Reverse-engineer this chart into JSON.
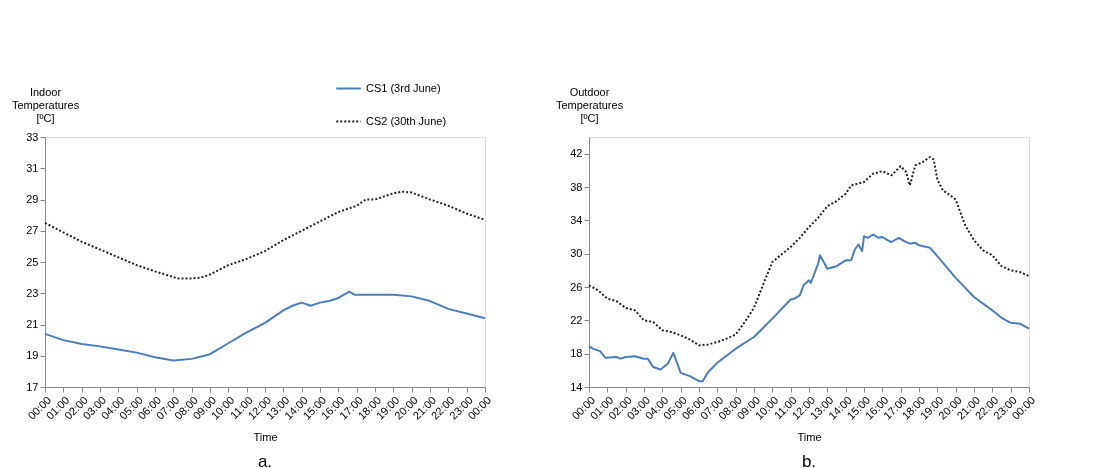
{
  "chart_data": [
    {
      "type": "line",
      "ylabel": "Indoor Temperatures [ºC]",
      "xlabel": "Time",
      "annotations": [
        "a."
      ],
      "xlim": [
        0,
        24
      ],
      "xticks": [
        {
          "value": 0,
          "label": "00:00"
        },
        {
          "value": 1,
          "label": "01:00"
        },
        {
          "value": 2,
          "label": "02:00"
        },
        {
          "value": 3,
          "label": "03:00"
        },
        {
          "value": 4,
          "label": "04:00"
        },
        {
          "value": 5,
          "label": "05:00"
        },
        {
          "value": 6,
          "label": "06:00"
        },
        {
          "value": 7,
          "label": "07:00"
        },
        {
          "value": 8,
          "label": "08:00"
        },
        {
          "value": 9,
          "label": "09:00"
        },
        {
          "value": 10,
          "label": "10:00"
        },
        {
          "value": 11,
          "label": "11:00"
        },
        {
          "value": 12,
          "label": "12:00"
        },
        {
          "value": 13,
          "label": "13:00"
        },
        {
          "value": 14,
          "label": "14:00"
        },
        {
          "value": 15,
          "label": "15:00"
        },
        {
          "value": 16,
          "label": "16:00"
        },
        {
          "value": 17,
          "label": "17:00"
        },
        {
          "value": 18,
          "label": "18:00"
        },
        {
          "value": 19,
          "label": "19:00"
        },
        {
          "value": 20,
          "label": "20:00"
        },
        {
          "value": 21,
          "label": "21:00"
        },
        {
          "value": 22,
          "label": "22:00"
        },
        {
          "value": 23,
          "label": "23:00"
        },
        {
          "value": 24,
          "label": "00:00"
        }
      ],
      "ylim": [
        17,
        33
      ],
      "yticks": [
        17,
        19,
        21,
        23,
        25,
        27,
        29,
        31,
        33
      ],
      "grid": false,
      "legend": "top right",
      "marker": "none",
      "series": [
        {
          "name": "CS1 (3rd June)",
          "color": "#4a7ebb",
          "line_style": "solid",
          "x": [
            0,
            1,
            2,
            3,
            4,
            5,
            6,
            7,
            8,
            9,
            10,
            11,
            12,
            12.5,
            13,
            13.5,
            14,
            14.5,
            15,
            15.5,
            16,
            16.6,
            16.9,
            18,
            19,
            20,
            21,
            22,
            23,
            24
          ],
          "values": [
            20.4,
            20.0,
            19.75,
            19.6,
            19.4,
            19.2,
            18.9,
            18.7,
            18.8,
            19.1,
            19.8,
            20.5,
            21.1,
            21.5,
            21.9,
            22.2,
            22.4,
            22.2,
            22.4,
            22.5,
            22.7,
            23.1,
            22.9,
            22.9,
            22.9,
            22.8,
            22.5,
            22.0,
            21.7,
            21.4
          ]
        },
        {
          "name": "CS2 (30th June)",
          "color": "#222222",
          "line_style": "dotted",
          "x": [
            0,
            1,
            2,
            3,
            4,
            5,
            6,
            7,
            7.2,
            8,
            8.5,
            9,
            10,
            11,
            12,
            13,
            14,
            15,
            16,
            17,
            17.5,
            18,
            19,
            19.5,
            20,
            21,
            22,
            23,
            24
          ],
          "values": [
            27.5,
            26.9,
            26.3,
            25.8,
            25.3,
            24.8,
            24.4,
            24.05,
            23.95,
            23.95,
            24.0,
            24.2,
            24.8,
            25.2,
            25.7,
            26.4,
            27.0,
            27.6,
            28.2,
            28.6,
            29.0,
            29.0,
            29.4,
            29.5,
            29.45,
            29.0,
            28.6,
            28.1,
            27.7
          ]
        }
      ]
    },
    {
      "type": "line",
      "ylabel": "Outdoor Temperatures [ºC]",
      "xlabel": "Time",
      "annotations": [
        "b."
      ],
      "xlim": [
        0,
        24
      ],
      "xticks": [
        {
          "value": 0,
          "label": "00:00"
        },
        {
          "value": 1,
          "label": "01:00"
        },
        {
          "value": 2,
          "label": "02:00"
        },
        {
          "value": 3,
          "label": "03:00"
        },
        {
          "value": 4,
          "label": "04:00"
        },
        {
          "value": 5,
          "label": "05:00"
        },
        {
          "value": 6,
          "label": "06:00"
        },
        {
          "value": 7,
          "label": "07:00"
        },
        {
          "value": 8,
          "label": "08:00"
        },
        {
          "value": 9,
          "label": "09:00"
        },
        {
          "value": 10,
          "label": "10:00"
        },
        {
          "value": 11,
          "label": "11:00"
        },
        {
          "value": 12,
          "label": "12:00"
        },
        {
          "value": 13,
          "label": "13:00"
        },
        {
          "value": 14,
          "label": "14:00"
        },
        {
          "value": 15,
          "label": "15:00"
        },
        {
          "value": 16,
          "label": "16:00"
        },
        {
          "value": 17,
          "label": "17:00"
        },
        {
          "value": 18,
          "label": "18:00"
        },
        {
          "value": 19,
          "label": "19:00"
        },
        {
          "value": 20,
          "label": "20:00"
        },
        {
          "value": 21,
          "label": "21:00"
        },
        {
          "value": 22,
          "label": "22:00"
        },
        {
          "value": 23,
          "label": "23:00"
        },
        {
          "value": 24,
          "label": "00:00"
        }
      ],
      "ylim": [
        14,
        44
      ],
      "yticks": [
        14,
        18,
        22,
        26,
        30,
        34,
        38,
        42
      ],
      "grid": false,
      "legend": "top right",
      "marker": "none",
      "series": [
        {
          "name": "CS1 (3rd June)",
          "color": "#4a7ebb",
          "line_style": "solid",
          "x": [
            0,
            0.2,
            0.6,
            0.9,
            1.5,
            1.7,
            2,
            2.5,
            3,
            3.2,
            3.5,
            3.9,
            4.3,
            4.6,
            5,
            5.5,
            6,
            6.2,
            6.5,
            7,
            8,
            9,
            10,
            11,
            11.2,
            11.5,
            11.7,
            12,
            12.1,
            12.5,
            12.6,
            13,
            13.5,
            14,
            14.3,
            14.5,
            14.7,
            14.9,
            15,
            15.2,
            15.5,
            15.8,
            16,
            16.3,
            16.5,
            16.9,
            17.2,
            17.5,
            17.8,
            18,
            18.6,
            19,
            20,
            21,
            22,
            22.5,
            23,
            23.5,
            24
          ],
          "values": [
            18.9,
            18.6,
            18.3,
            17.5,
            17.6,
            17.4,
            17.6,
            17.7,
            17.4,
            17.4,
            16.4,
            16.1,
            16.8,
            18.1,
            15.7,
            15.3,
            14.7,
            14.7,
            15.8,
            16.9,
            18.6,
            20.0,
            22.2,
            24.5,
            24.6,
            25.0,
            26.2,
            26.8,
            26.5,
            28.8,
            29.8,
            28.2,
            28.5,
            29.2,
            29.2,
            30.5,
            31.1,
            30.3,
            32.1,
            31.9,
            32.3,
            31.9,
            32.0,
            31.6,
            31.4,
            31.9,
            31.5,
            31.2,
            31.3,
            31.0,
            30.7,
            29.7,
            27.1,
            24.8,
            23.2,
            22.3,
            21.7,
            21.6,
            21.0
          ]
        },
        {
          "name": "CS2 (30th June)",
          "color": "#222222",
          "line_style": "dotted",
          "x": [
            0,
            0.5,
            1,
            1.5,
            2,
            2.5,
            3,
            3.5,
            4,
            4.5,
            5,
            5.5,
            6,
            6.5,
            7,
            7.5,
            8,
            8.5,
            9,
            9.5,
            10,
            10.5,
            11,
            11.5,
            12,
            12.5,
            13,
            13.5,
            14,
            14.3,
            15,
            15.5,
            16,
            16.5,
            17,
            17.3,
            17.5,
            17.8,
            18.2,
            18.6,
            18.8,
            19,
            19.3,
            19.7,
            20,
            20.5,
            21,
            21.5,
            22,
            22.5,
            23,
            23.5,
            24
          ],
          "values": [
            26.2,
            25.6,
            24.6,
            24.3,
            23.5,
            23.2,
            22.0,
            21.8,
            20.8,
            20.6,
            20.2,
            19.7,
            19.0,
            19.1,
            19.4,
            19.8,
            20.3,
            21.8,
            23.5,
            26.3,
            29.0,
            29.9,
            30.8,
            31.9,
            33.2,
            34.3,
            35.7,
            36.3,
            37.2,
            38.2,
            38.6,
            39.6,
            39.9,
            39.4,
            40.5,
            39.8,
            38.2,
            40.6,
            41.0,
            41.6,
            41.3,
            38.9,
            37.6,
            37.0,
            36.5,
            33.5,
            31.6,
            30.4,
            29.8,
            28.5,
            28.0,
            27.8,
            27.3
          ]
        }
      ]
    }
  ]
}
